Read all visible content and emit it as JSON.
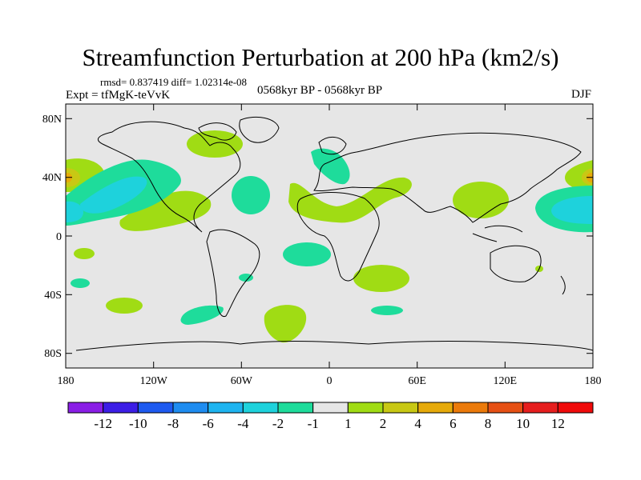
{
  "title": "Streamfunction Perturbation at 200 hPa (km2/s)",
  "stats": "rmsd= 0.837419 diff= 1.02314e-08",
  "experiment": "Expt = tfMgK-teVvK",
  "period": "0568kyr BP - 0568kyr BP",
  "season": "DJF",
  "map": {
    "lat_ticks": [
      "80N",
      "40N",
      "0",
      "40S",
      "80S"
    ],
    "lon_ticks": [
      "180",
      "120W",
      "60W",
      "0",
      "60E",
      "120E",
      "180"
    ]
  },
  "colorbar": {
    "labels": [
      "-12",
      "-10",
      "-8",
      "-6",
      "-4",
      "-2",
      "-1",
      "1",
      "2",
      "4",
      "6",
      "8",
      "10",
      "12"
    ],
    "colors": [
      "#8a1ee6",
      "#3c1ee6",
      "#1e5af0",
      "#1e8cf0",
      "#1eb4f0",
      "#1ed2dc",
      "#1edc9b",
      "#e6e6e6",
      "#a0dc14",
      "#c8c814",
      "#e6aa0a",
      "#eb7a0a",
      "#e65014",
      "#e61e1e",
      "#f00a0a"
    ]
  },
  "colors": {
    "background": "#e6e6e6",
    "neg1": "#1edc9b",
    "neg2": "#1ed2dc",
    "pos1": "#a0dc14",
    "pos2": "#c8c814",
    "pos3": "#e6aa0a"
  }
}
